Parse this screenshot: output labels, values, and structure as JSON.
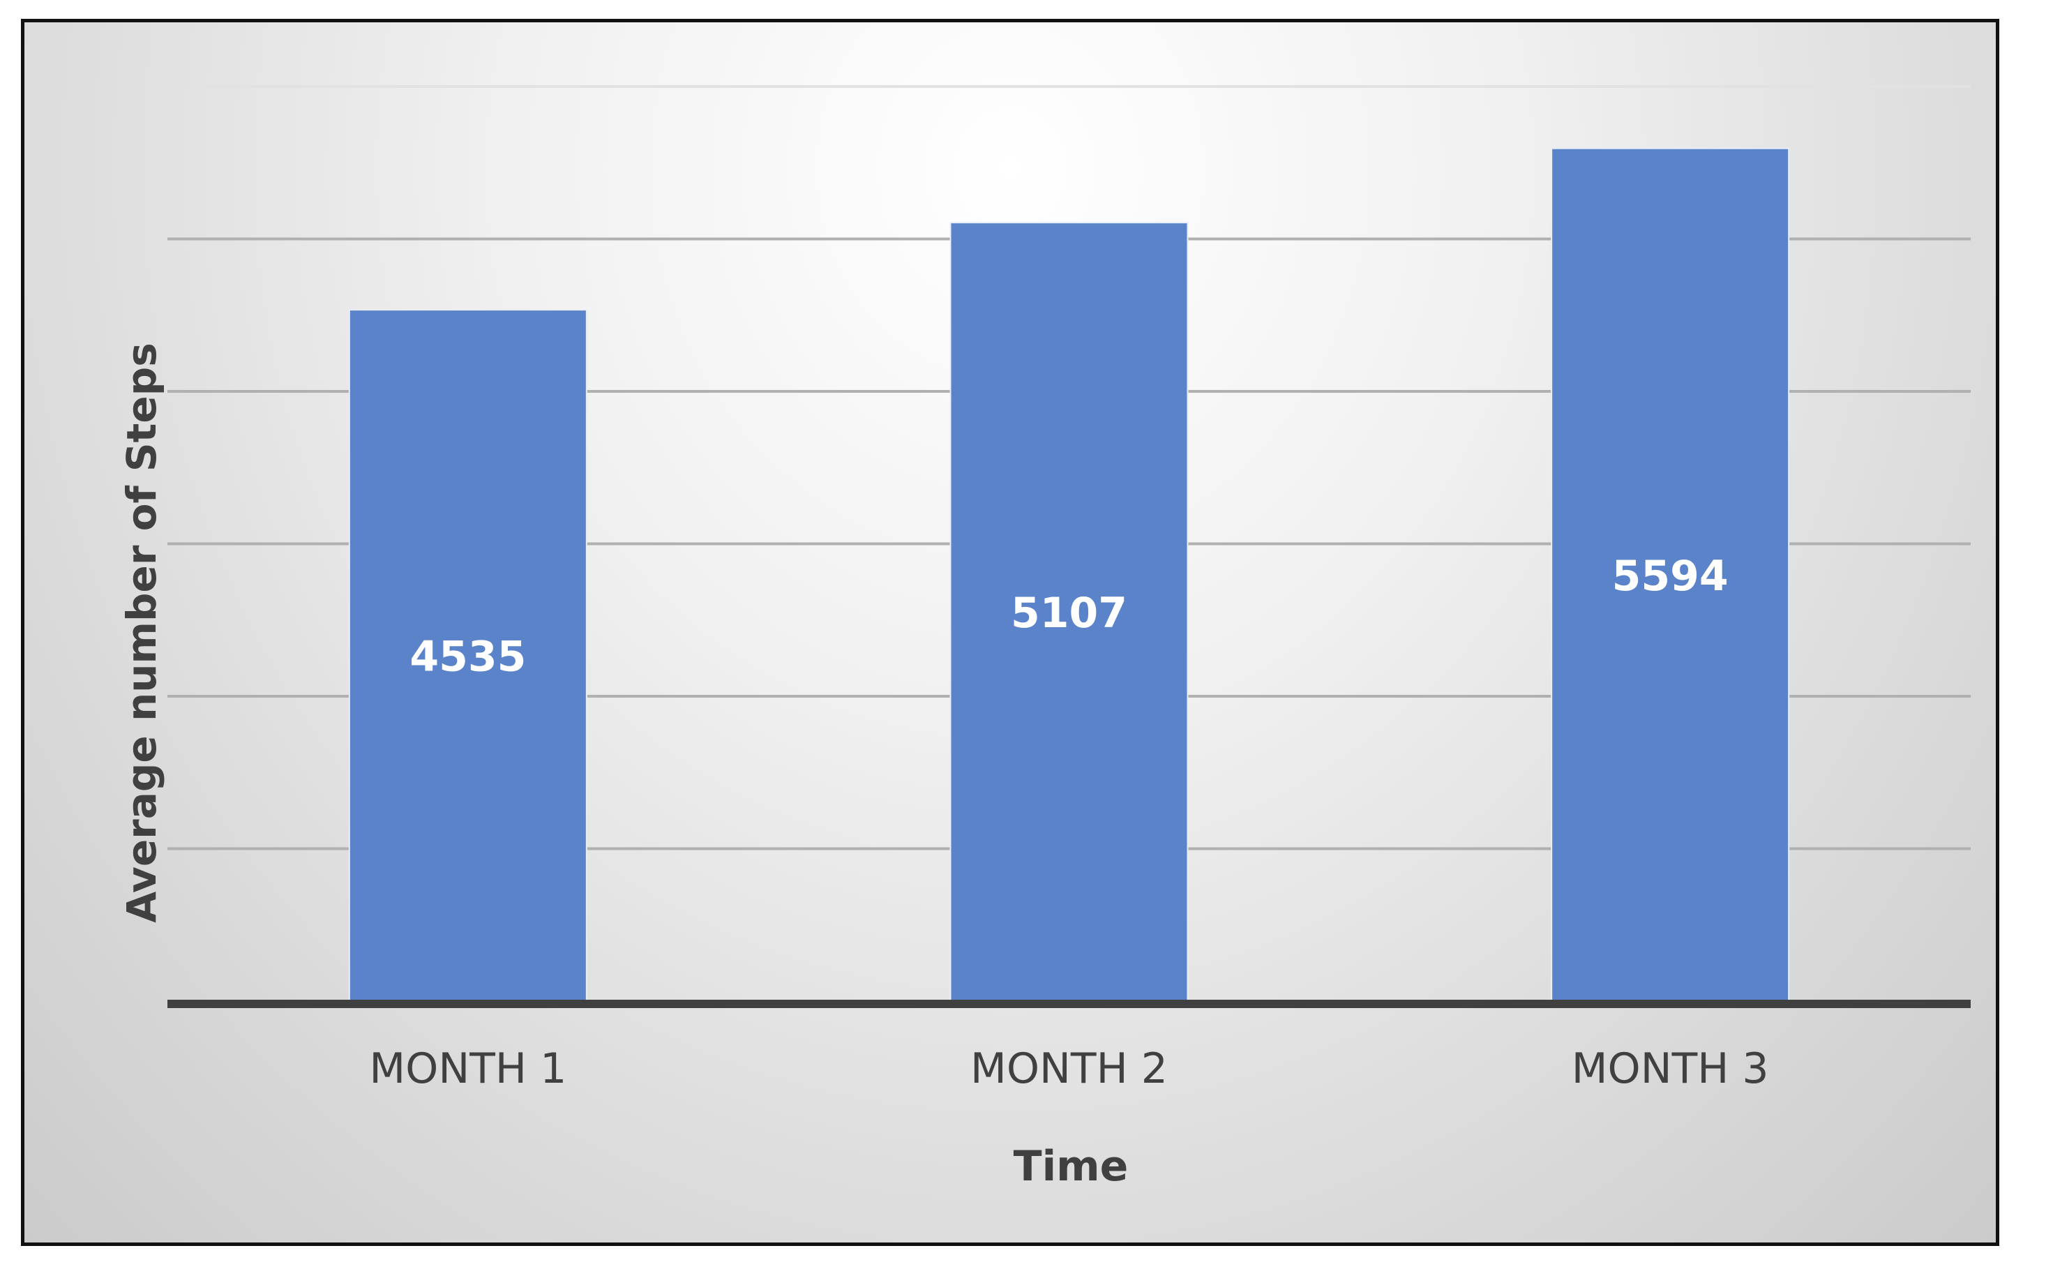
{
  "chart_data": {
    "type": "bar",
    "categories": [
      "MONTH 1",
      "MONTH 2",
      "MONTH 3"
    ],
    "values": [
      4535,
      5107,
      5594
    ],
    "data_labels": [
      "4535",
      "5107",
      "5594"
    ],
    "title": "",
    "xlabel": "Time",
    "ylabel": "Average number of Steps",
    "ylim": [
      0,
      6000
    ],
    "gridline_step": 1000,
    "grid": true,
    "legend": false,
    "bar_color": "#5b83c9",
    "data_label_color": "#ffffff",
    "axis_line_color": "#404040",
    "gridline_color": "#b0b0b0",
    "text_color": "#404040"
  }
}
